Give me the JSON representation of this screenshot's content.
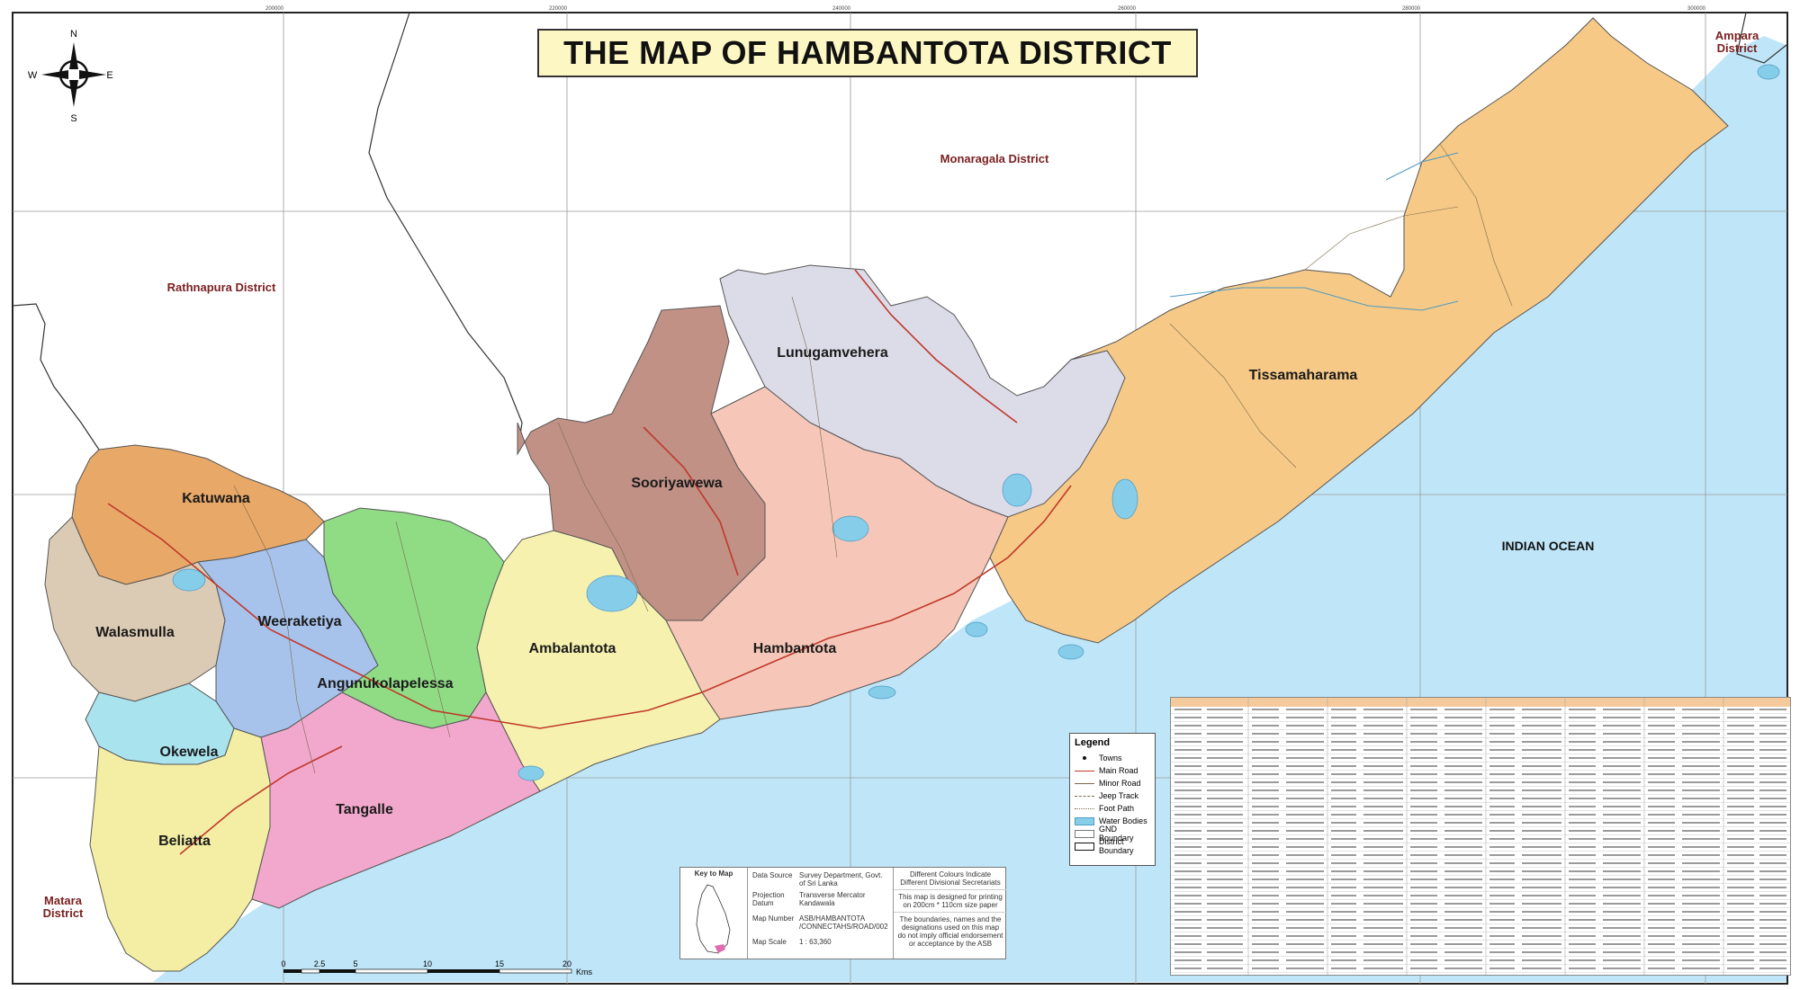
{
  "title": "THE MAP OF HAMBANTOTA DISTRICT",
  "compass": {
    "n": "N",
    "s": "S",
    "e": "E",
    "w": "W"
  },
  "neighbors": {
    "monaragala": "Monaragala District",
    "rathnapura": "Rathnapura District",
    "ampara_line1": "Ampara",
    "ampara_line2": "District",
    "matara_line1": "Matara",
    "matara_line2": "District",
    "ocean": "INDIAN OCEAN"
  },
  "divisions": [
    {
      "name": "Katuwana",
      "color": "#e8a868"
    },
    {
      "name": "Walasmulla",
      "color": "#dccbb4"
    },
    {
      "name": "Weeraketiya",
      "color": "#a7c3ec"
    },
    {
      "name": "Angunukolapelessa",
      "color": "#8fdc85"
    },
    {
      "name": "Okewela",
      "color": "#a9e3ee"
    },
    {
      "name": "Beliatta",
      "color": "#f3eea4"
    },
    {
      "name": "Tangalle",
      "color": "#f2a8cd"
    },
    {
      "name": "Ambalantota",
      "color": "#f6f1ae"
    },
    {
      "name": "Sooriyawewa",
      "color": "#c19186"
    },
    {
      "name": "Lunugamvehera",
      "color": "#dcdbe8"
    },
    {
      "name": "Hambantota",
      "color": "#f6c7b8"
    },
    {
      "name": "Tissamaharama",
      "color": "#f6c986"
    }
  ],
  "legend": {
    "title": "Legend",
    "items": [
      "Towns",
      "Main Road",
      "Minor Road",
      "Jeep Track",
      "Foot Path",
      "Water Bodies",
      "GND Boundary",
      "District Boundary"
    ]
  },
  "info": {
    "key_label": "Key to Map",
    "data_source_label": "Data Source",
    "data_source_value": "Survey Department, Govt. of Sri Lanka",
    "projection_label": "Projection Datum",
    "projection_value": "Transverse Mercator Kandawala",
    "map_number_label": "Map Number",
    "map_number_value": "ASB/HAMBANTOTA /CONNECTAHS/ROAD/002",
    "map_scale_label": "Map Scale",
    "map_scale_value": "1 : 63,360",
    "note1": "Different Colours Indicate Different Divisional Secretariats",
    "note2": "This map is designed for printing on 200cm * 110cm size paper",
    "note3": "The boundaries, names and the designations used on this map do not imply official endorsement or acceptance by the ASB"
  },
  "scale_bar": {
    "ticks": [
      "0",
      "2.5",
      "5",
      "10",
      "15",
      "20"
    ],
    "unit": "Kms"
  },
  "grid_labels": {
    "top": [
      "200000",
      "220000",
      "240000",
      "260000",
      "280000",
      "300000"
    ]
  },
  "colors": {
    "ocean": "#bfe6f8",
    "title_bg": "#fdf7c4",
    "water": "#86cdea",
    "road": "#c0392b",
    "district_label": "#7a1f1f"
  }
}
